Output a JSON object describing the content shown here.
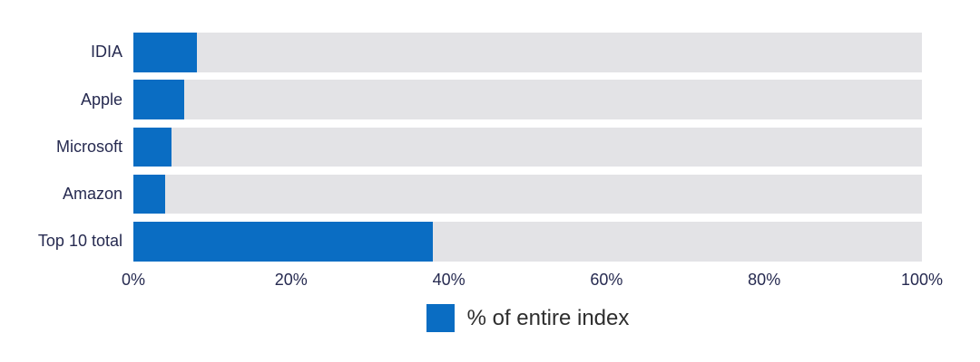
{
  "chart_data": {
    "type": "bar",
    "orientation": "horizontal",
    "title": "",
    "categories": [
      "IDIA",
      "Apple",
      "Microsoft",
      "Amazon",
      "Top 10 total"
    ],
    "values": [
      8,
      6.5,
      4.8,
      4,
      38
    ],
    "series_name": "% of entire index",
    "xlabel": "",
    "ylabel": "",
    "xlim": [
      0,
      100
    ],
    "x_tick_labels": [
      "0%",
      "20%",
      "40%",
      "60%",
      "80%",
      "100%"
    ],
    "x_tick_percents": [
      0,
      20,
      40,
      60,
      80,
      100
    ],
    "grid": {
      "on": true,
      "percents": [
        0,
        20,
        40,
        60,
        80
      ]
    },
    "legend": {
      "position": "bottom",
      "label": "% of entire index"
    },
    "colors": {
      "bar": "#0a6dc3",
      "track": "#e3e3e6",
      "gridline": "#c9c9cd",
      "label_text": "#262a50",
      "tick_text": "#262a50",
      "legend_text": "#2e2e2e",
      "background": "#ffffff"
    }
  }
}
